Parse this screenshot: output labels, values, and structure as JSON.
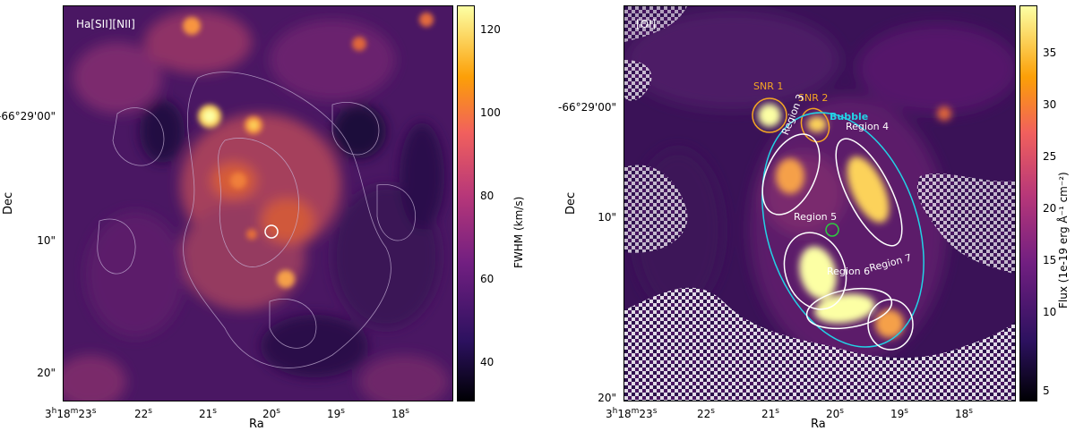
{
  "left": {
    "label": "Ha[SII][NII]",
    "ylabel": "Dec",
    "xlabel": "Ra",
    "yticks": [
      "-66°29'00\"",
      "10\"",
      "20\""
    ],
    "xticks_main": "3",
    "xticks": [
      "22",
      "21",
      "20",
      "19",
      "18"
    ],
    "xtick_unit": "s",
    "colorbar": {
      "title": "FWHM (km/s)",
      "ticks": [
        "120",
        "100",
        "80",
        "60",
        "40"
      ]
    }
  },
  "right": {
    "label": "[OI]",
    "ylabel": "Dec",
    "xlabel": "Ra",
    "yticks": [
      "-66°29'00\"",
      "10\"",
      "20\""
    ],
    "xticks": [
      "22",
      "21",
      "20",
      "19",
      "18"
    ],
    "xtick_unit": "s",
    "regions": {
      "snr1": "SNR 1",
      "snr2": "SNR 2",
      "bubble": "Bubble",
      "r3": "Region 3",
      "r4": "Region 4",
      "r5": "Region 5",
      "r6": "Region 6",
      "r7": "Region 7"
    },
    "colorbar": {
      "title": "Flux (1e-19 erg Å⁻¹ cm⁻²)",
      "ticks": [
        "35",
        "30",
        "25",
        "20",
        "15",
        "10",
        "5"
      ]
    }
  },
  "colors": {
    "cmap_low": "#0d0829",
    "cmap_mid": "#7a2a78",
    "cmap_high": "#fcffa4",
    "snr_circle": "#f5a623",
    "bubble_ellipse": "#22d3e6",
    "region_ellipse": "#ffffff",
    "region5_circle": "#2ecc40"
  }
}
